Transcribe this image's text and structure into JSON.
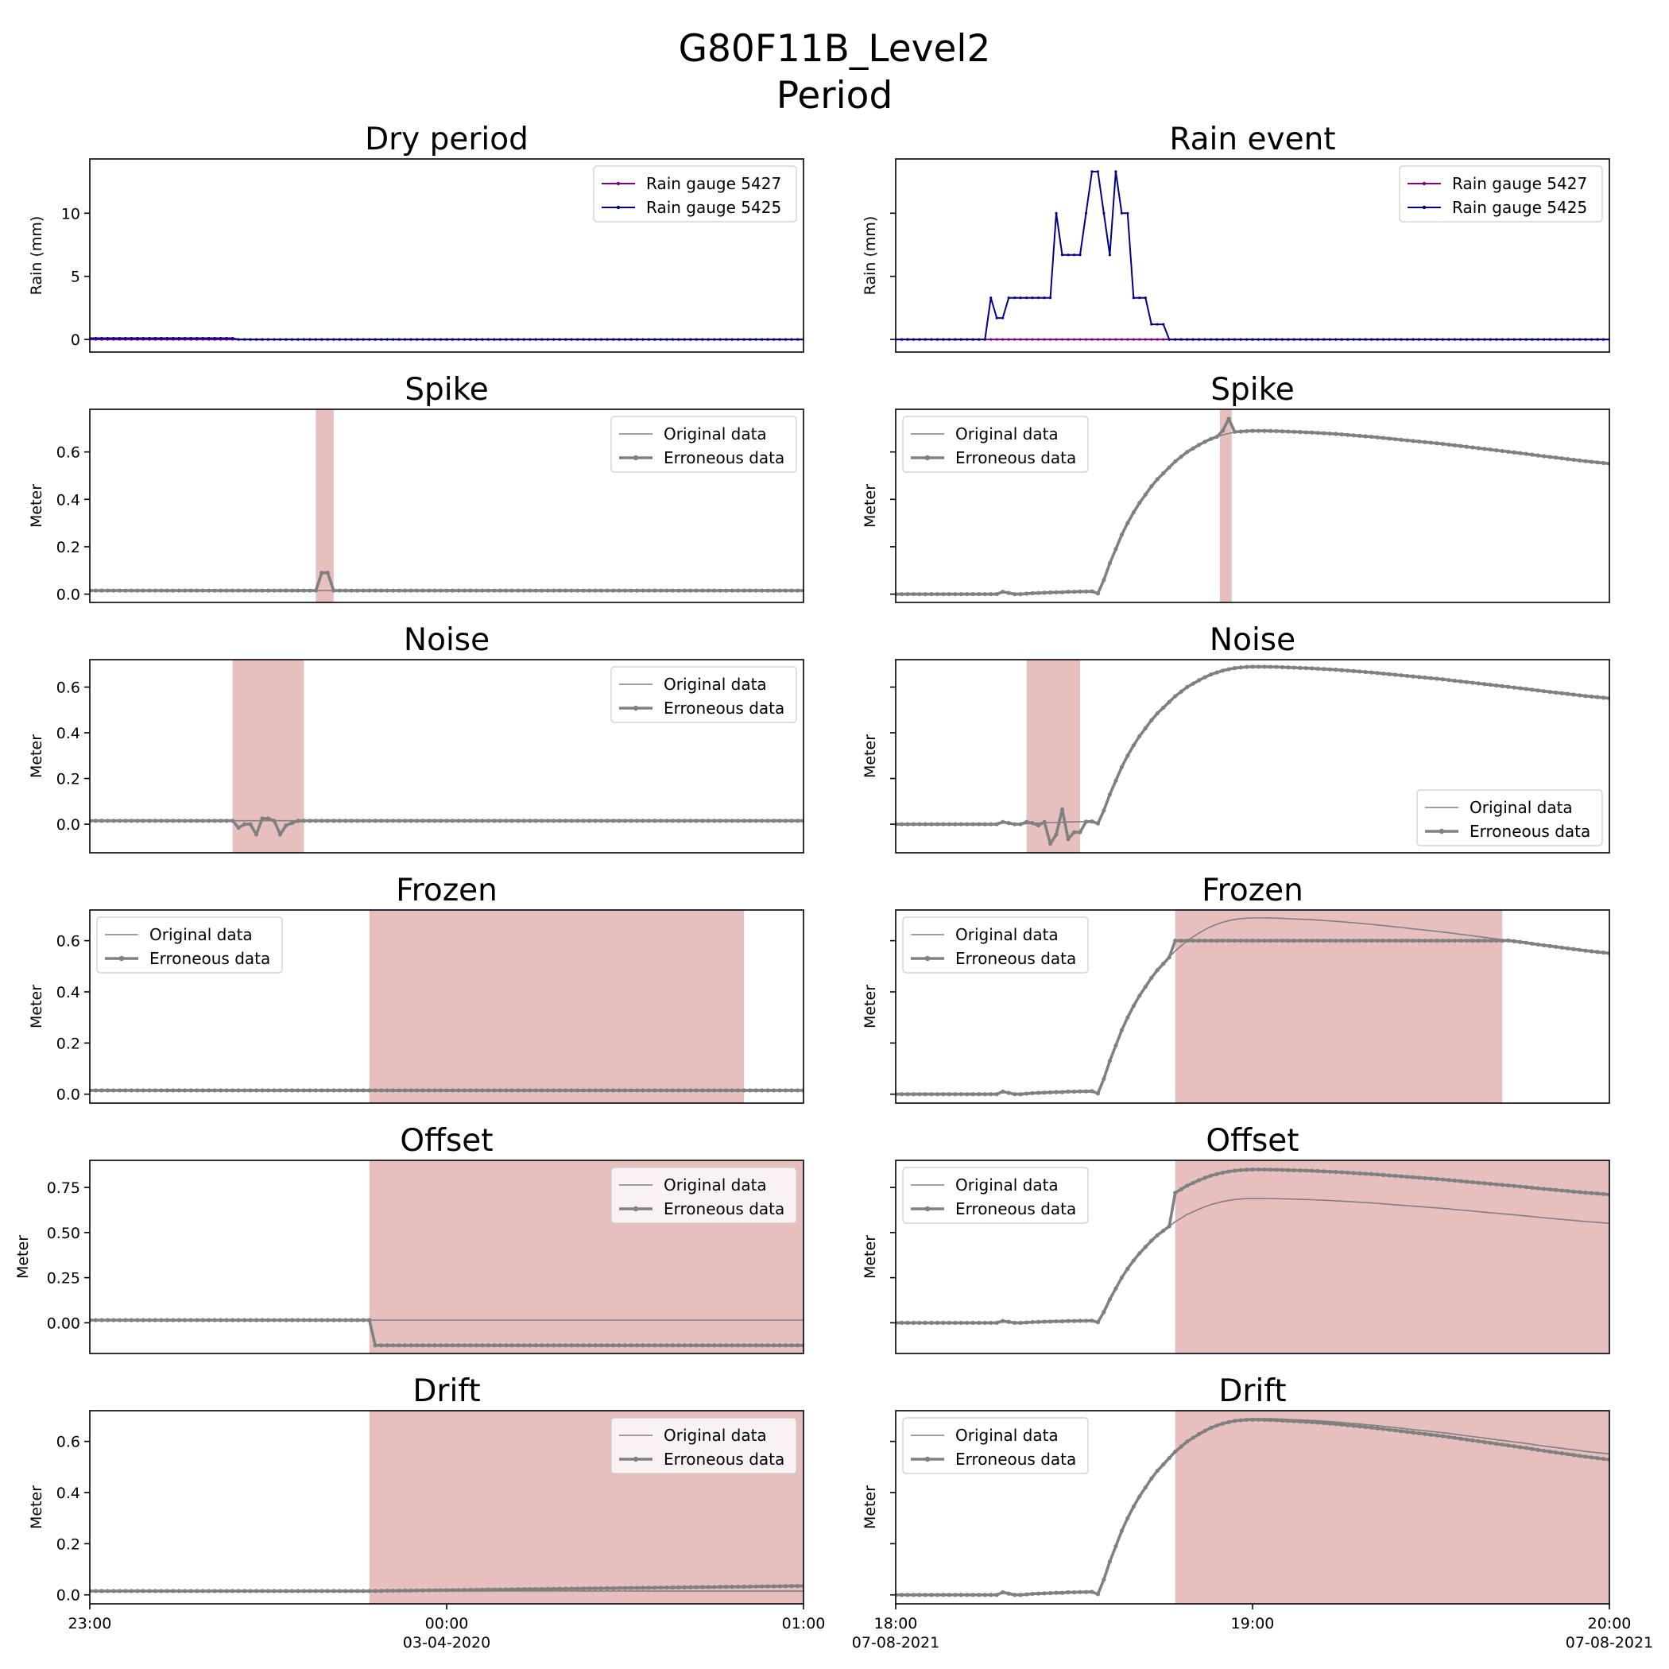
{
  "figure": {
    "title_line1": "G80F11B_Level2",
    "title_line2": "Period"
  },
  "colors": {
    "original": "#808080",
    "erroneous": "#808080",
    "shade": "#d08080",
    "gauge_5427": "#800080",
    "gauge_5425": "#00008b"
  },
  "columns": [
    {
      "x_axis": {
        "ticks": [
          {
            "value": 0,
            "label": "23:00",
            "sublabel": ""
          },
          {
            "value": 60,
            "label": "00:00",
            "sublabel": "03-04-2020"
          },
          {
            "value": 120,
            "label": "01:00",
            "sublabel": ""
          }
        ],
        "xlim": [
          0,
          120
        ]
      }
    },
    {
      "x_axis": {
        "ticks": [
          {
            "value": 0,
            "label": "18:00",
            "sublabel": "07-08-2021"
          },
          {
            "value": 60,
            "label": "19:00",
            "sublabel": ""
          },
          {
            "value": 120,
            "label": "20:00",
            "sublabel": "07-08-2021"
          }
        ],
        "xlim": [
          0,
          120
        ]
      }
    }
  ],
  "chart_data": [
    {
      "id": "dry-rain",
      "col": 0,
      "row": 0,
      "type": "line",
      "title": "Dry period",
      "ylabel": "Rain (mm)",
      "ylim": [
        -1,
        14.3
      ],
      "yticks": [
        {
          "value": 0,
          "label": "0"
        },
        {
          "value": 5,
          "label": "5"
        },
        {
          "value": 10,
          "label": "10"
        }
      ],
      "legend": "top-right",
      "series": [
        {
          "name": "Rain gauge 5427",
          "style": "gauge_5427",
          "points": [
            [
              0,
              0
            ],
            [
              120,
              0
            ]
          ]
        },
        {
          "name": "Rain gauge 5425",
          "style": "gauge_5425",
          "points": [
            [
              0,
              0.1
            ],
            [
              24,
              0.1
            ],
            [
              25,
              0
            ],
            [
              120,
              0
            ]
          ]
        }
      ]
    },
    {
      "id": "rain-rain",
      "col": 1,
      "row": 0,
      "type": "line",
      "title": "Rain event",
      "ylabel": "Rain (mm)",
      "ylim": [
        -1,
        14.3
      ],
      "yticks": [
        {
          "value": 0,
          "label": ""
        },
        {
          "value": 5,
          "label": ""
        },
        {
          "value": 10,
          "label": ""
        }
      ],
      "legend": "top-right",
      "series": [
        {
          "name": "Rain gauge 5427",
          "style": "gauge_5427",
          "points": [
            [
              0,
              0
            ],
            [
              120,
              0
            ]
          ]
        },
        {
          "name": "Rain gauge 5425",
          "style": "gauge_5425",
          "points": [
            [
              0,
              0
            ],
            [
              15,
              0
            ],
            [
              16,
              3.3
            ],
            [
              17,
              1.7
            ],
            [
              18,
              1.7
            ],
            [
              19,
              3.3
            ],
            [
              20,
              3.3
            ],
            [
              21,
              3.3
            ],
            [
              22,
              3.3
            ],
            [
              23,
              3.3
            ],
            [
              24,
              3.3
            ],
            [
              25,
              3.3
            ],
            [
              26,
              3.3
            ],
            [
              27,
              10
            ],
            [
              28,
              6.7
            ],
            [
              29,
              6.7
            ],
            [
              30,
              6.7
            ],
            [
              31,
              6.7
            ],
            [
              32,
              10
            ],
            [
              33,
              13.3
            ],
            [
              34,
              13.3
            ],
            [
              35,
              10
            ],
            [
              36,
              6.7
            ],
            [
              37,
              13.3
            ],
            [
              38,
              10
            ],
            [
              39,
              10
            ],
            [
              40,
              3.3
            ],
            [
              41,
              3.3
            ],
            [
              42,
              3.3
            ],
            [
              43,
              1.2
            ],
            [
              44,
              1.2
            ],
            [
              45,
              1.2
            ],
            [
              46,
              0
            ],
            [
              120,
              0
            ]
          ]
        }
      ]
    },
    {
      "id": "dry-spike",
      "col": 0,
      "row": 1,
      "type": "line",
      "title": "Spike",
      "ylabel": "Meter",
      "ylim": [
        -0.035,
        0.78
      ],
      "yticks": [
        {
          "value": 0,
          "label": "0.0"
        },
        {
          "value": 0.2,
          "label": "0.2"
        },
        {
          "value": 0.4,
          "label": "0.4"
        },
        {
          "value": 0.6,
          "label": "0.6"
        }
      ],
      "legend": "top-right",
      "shade": [
        38,
        41
      ],
      "original": [
        [
          0,
          0.015
        ],
        [
          120,
          0.015
        ]
      ],
      "erroneous": [
        [
          0,
          0.015
        ],
        [
          38,
          0.015
        ],
        [
          39,
          0.09
        ],
        [
          40,
          0.09
        ],
        [
          41,
          0.015
        ],
        [
          120,
          0.015
        ]
      ]
    },
    {
      "id": "rain-spike",
      "col": 1,
      "row": 1,
      "type": "line",
      "title": "Spike",
      "ylabel": "Meter",
      "ylim": [
        -0.035,
        0.78
      ],
      "yticks": [
        {
          "value": 0,
          "label": ""
        },
        {
          "value": 0.2,
          "label": ""
        },
        {
          "value": 0.4,
          "label": ""
        },
        {
          "value": 0.6,
          "label": ""
        }
      ],
      "legend": "top-left",
      "shade": [
        54.5,
        56.5
      ],
      "original": "curve",
      "erroneous": "curve",
      "spike": [
        [
          55,
          0.69
        ],
        [
          56,
          0.74
        ],
        [
          57,
          0.685
        ]
      ]
    },
    {
      "id": "dry-noise",
      "col": 0,
      "row": 2,
      "type": "line",
      "title": "Noise",
      "ylabel": "Meter",
      "ylim": [
        -0.125,
        0.72
      ],
      "yticks": [
        {
          "value": 0,
          "label": "0.0"
        },
        {
          "value": 0.2,
          "label": "0.2"
        },
        {
          "value": 0.4,
          "label": "0.4"
        },
        {
          "value": 0.6,
          "label": "0.6"
        }
      ],
      "legend": "top-right",
      "shade": [
        24,
        36
      ],
      "original": [
        [
          0,
          0.015
        ],
        [
          120,
          0.015
        ]
      ],
      "erroneous": [
        [
          0,
          0.015
        ],
        [
          24,
          0.015
        ],
        [
          25,
          -0.015
        ],
        [
          26,
          0
        ],
        [
          27,
          0
        ],
        [
          28,
          -0.045
        ],
        [
          29,
          0.025
        ],
        [
          30,
          0.025
        ],
        [
          31,
          0.015
        ],
        [
          32,
          -0.045
        ],
        [
          33,
          -0.005
        ],
        [
          34,
          0.005
        ],
        [
          35,
          0.015
        ],
        [
          120,
          0.015
        ]
      ]
    },
    {
      "id": "rain-noise",
      "col": 1,
      "row": 2,
      "type": "line",
      "title": "Noise",
      "ylabel": "Meter",
      "ylim": [
        -0.125,
        0.72
      ],
      "yticks": [
        {
          "value": 0,
          "label": ""
        },
        {
          "value": 0.2,
          "label": ""
        },
        {
          "value": 0.4,
          "label": ""
        },
        {
          "value": 0.6,
          "label": ""
        }
      ],
      "legend": "bottom-right",
      "shade": [
        22,
        31
      ],
      "original": "curve",
      "erroneous": "curve",
      "noise": [
        [
          22,
          0.01
        ],
        [
          23,
          0.005
        ],
        [
          24,
          -0.005
        ],
        [
          25,
          0.01
        ],
        [
          26,
          -0.085
        ],
        [
          27,
          -0.045
        ],
        [
          28,
          0.065
        ],
        [
          29,
          -0.065
        ],
        [
          30,
          -0.035
        ],
        [
          31,
          -0.035
        ]
      ]
    },
    {
      "id": "dry-frozen",
      "col": 0,
      "row": 3,
      "type": "line",
      "title": "Frozen",
      "ylabel": "Meter",
      "ylim": [
        -0.035,
        0.72
      ],
      "yticks": [
        {
          "value": 0,
          "label": "0.0"
        },
        {
          "value": 0.2,
          "label": "0.2"
        },
        {
          "value": 0.4,
          "label": "0.4"
        },
        {
          "value": 0.6,
          "label": "0.6"
        }
      ],
      "legend": "top-left",
      "shade": [
        47,
        110
      ],
      "original": [
        [
          0,
          0.015
        ],
        [
          120,
          0.015
        ]
      ],
      "erroneous": [
        [
          0,
          0.015
        ],
        [
          120,
          0.015
        ]
      ]
    },
    {
      "id": "rain-frozen",
      "col": 1,
      "row": 3,
      "type": "line",
      "title": "Frozen",
      "ylabel": "Meter",
      "ylim": [
        -0.035,
        0.72
      ],
      "yticks": [
        {
          "value": 0,
          "label": ""
        },
        {
          "value": 0.2,
          "label": ""
        },
        {
          "value": 0.4,
          "label": ""
        },
        {
          "value": 0.6,
          "label": ""
        }
      ],
      "legend": "top-left",
      "shade": [
        47,
        102
      ],
      "original": "curve",
      "erroneous": "curve",
      "frozen": [
        47,
        102,
        0.6
      ]
    },
    {
      "id": "dry-offset",
      "col": 0,
      "row": 4,
      "type": "line",
      "title": "Offset",
      "ylabel": "Meter",
      "ylim": [
        -0.17,
        0.9
      ],
      "yticks": [
        {
          "value": 0,
          "label": "0.00"
        },
        {
          "value": 0.25,
          "label": "0.25"
        },
        {
          "value": 0.5,
          "label": "0.50"
        },
        {
          "value": 0.75,
          "label": "0.75"
        }
      ],
      "legend": "top-right",
      "shade": [
        47,
        120
      ],
      "original": [
        [
          0,
          0.015
        ],
        [
          120,
          0.015
        ]
      ],
      "erroneous": [
        [
          0,
          0.015
        ],
        [
          47,
          0.015
        ],
        [
          48,
          -0.125
        ],
        [
          120,
          -0.125
        ]
      ]
    },
    {
      "id": "rain-offset",
      "col": 1,
      "row": 4,
      "type": "line",
      "title": "Offset",
      "ylabel": "Meter",
      "ylim": [
        -0.17,
        0.9
      ],
      "yticks": [
        {
          "value": 0,
          "label": ""
        },
        {
          "value": 0.25,
          "label": ""
        },
        {
          "value": 0.5,
          "label": ""
        },
        {
          "value": 0.75,
          "label": ""
        }
      ],
      "legend": "top-left",
      "shade": [
        47,
        120
      ],
      "original": "curve",
      "erroneous": "curve",
      "offset": [
        47,
        0.16
      ]
    },
    {
      "id": "dry-drift",
      "col": 0,
      "row": 5,
      "type": "line",
      "title": "Drift",
      "ylabel": "Meter",
      "ylim": [
        -0.035,
        0.72
      ],
      "yticks": [
        {
          "value": 0,
          "label": "0.0"
        },
        {
          "value": 0.2,
          "label": "0.2"
        },
        {
          "value": 0.4,
          "label": "0.4"
        },
        {
          "value": 0.6,
          "label": "0.6"
        }
      ],
      "legend": "top-right",
      "shade": [
        47,
        120
      ],
      "original": [
        [
          0,
          0.015
        ],
        [
          120,
          0.015
        ]
      ],
      "erroneous": [
        [
          0,
          0.015
        ],
        [
          47,
          0.015
        ],
        [
          120,
          0.035
        ]
      ]
    },
    {
      "id": "rain-drift",
      "col": 1,
      "row": 5,
      "type": "line",
      "title": "Drift",
      "ylabel": "Meter",
      "ylim": [
        -0.035,
        0.72
      ],
      "yticks": [
        {
          "value": 0,
          "label": ""
        },
        {
          "value": 0.2,
          "label": ""
        },
        {
          "value": 0.4,
          "label": ""
        },
        {
          "value": 0.6,
          "label": ""
        }
      ],
      "legend": "top-left",
      "shade": [
        47,
        120
      ],
      "original": "curve",
      "erroneous": "curve",
      "drift": [
        47,
        -0.022
      ]
    }
  ],
  "level_curve": [
    [
      0,
      0
    ],
    [
      17,
      0
    ],
    [
      18,
      0.01
    ],
    [
      19,
      0.005
    ],
    [
      20,
      0
    ],
    [
      21,
      0
    ],
    [
      22,
      0.002
    ],
    [
      23,
      0.004
    ],
    [
      24,
      0.005
    ],
    [
      25,
      0.006
    ],
    [
      26,
      0.007
    ],
    [
      27,
      0.008
    ],
    [
      28,
      0.008
    ],
    [
      29,
      0.01
    ],
    [
      30,
      0.01
    ],
    [
      31,
      0.011
    ],
    [
      32,
      0.011
    ],
    [
      33,
      0.012
    ],
    [
      34,
      0.003
    ],
    [
      35,
      0.06
    ],
    [
      36,
      0.13
    ],
    [
      37,
      0.19
    ],
    [
      38,
      0.25
    ],
    [
      39,
      0.3
    ],
    [
      40,
      0.345
    ],
    [
      41,
      0.385
    ],
    [
      42,
      0.42
    ],
    [
      43,
      0.455
    ],
    [
      44,
      0.485
    ],
    [
      45,
      0.51
    ],
    [
      46,
      0.535
    ],
    [
      47,
      0.56
    ],
    [
      48,
      0.58
    ],
    [
      49,
      0.6
    ],
    [
      50,
      0.615
    ],
    [
      51,
      0.63
    ],
    [
      52,
      0.643
    ],
    [
      53,
      0.655
    ],
    [
      54,
      0.664
    ],
    [
      55,
      0.672
    ],
    [
      56,
      0.678
    ],
    [
      57,
      0.683
    ],
    [
      58,
      0.686
    ],
    [
      59,
      0.688
    ],
    [
      60,
      0.689
    ],
    [
      61,
      0.689
    ],
    [
      62,
      0.689
    ],
    [
      64,
      0.688
    ],
    [
      66,
      0.686
    ],
    [
      68,
      0.684
    ],
    [
      70,
      0.682
    ],
    [
      72,
      0.679
    ],
    [
      74,
      0.676
    ],
    [
      76,
      0.672
    ],
    [
      78,
      0.668
    ],
    [
      80,
      0.664
    ],
    [
      82,
      0.659
    ],
    [
      84,
      0.654
    ],
    [
      86,
      0.649
    ],
    [
      88,
      0.644
    ],
    [
      90,
      0.639
    ],
    [
      92,
      0.634
    ],
    [
      94,
      0.628
    ],
    [
      96,
      0.622
    ],
    [
      98,
      0.616
    ],
    [
      100,
      0.61
    ],
    [
      102,
      0.604
    ],
    [
      104,
      0.598
    ],
    [
      106,
      0.592
    ],
    [
      108,
      0.585
    ],
    [
      110,
      0.579
    ],
    [
      112,
      0.573
    ],
    [
      114,
      0.567
    ],
    [
      116,
      0.561
    ],
    [
      118,
      0.556
    ],
    [
      120,
      0.551
    ]
  ],
  "legend_labels": {
    "original": "Original data",
    "erroneous": "Erroneous data"
  }
}
